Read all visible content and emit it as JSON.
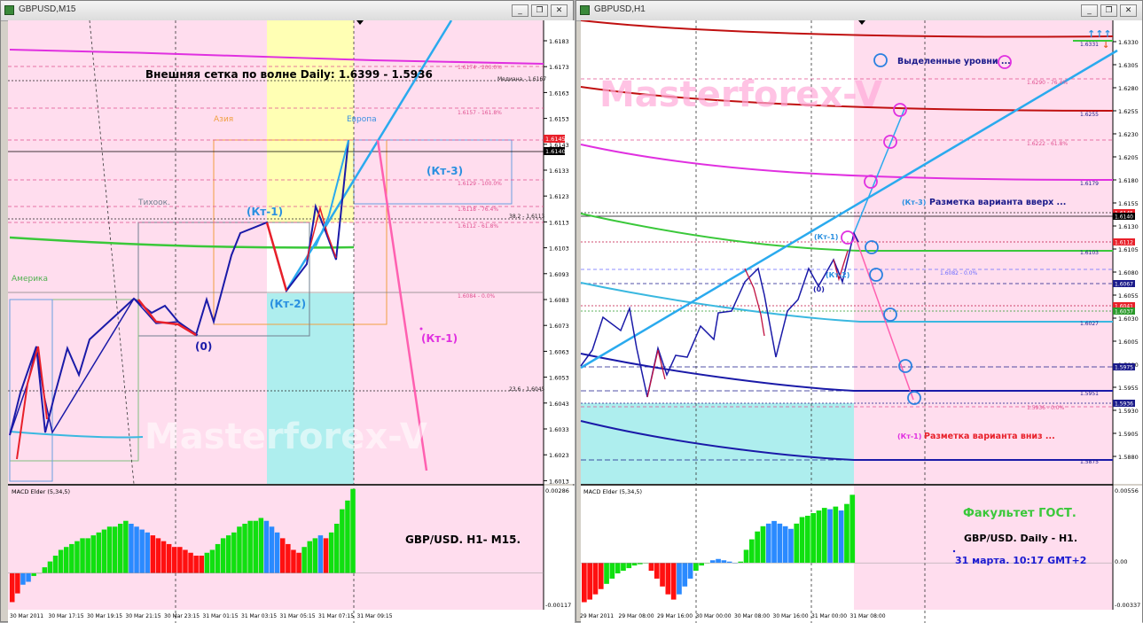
{
  "left_window": {
    "title": "GBPUSD,M15",
    "buttons": {
      "minimize": "_",
      "restore": "❐",
      "close": "✕"
    },
    "chart": {
      "y_ticks": [
        "1.6183",
        "1.6173",
        "1.6163",
        "1.6153",
        "1.6143",
        "1.6133",
        "1.6123",
        "1.6113",
        "1.6103",
        "1.6093",
        "1.6083",
        "1.6073",
        "1.6063",
        "1.6053",
        "1.6043",
        "1.6033",
        "1.6023",
        "1.6013"
      ],
      "price_tags": [
        {
          "text": "1.6145",
          "bg": "#e8202a",
          "fg": "#ffffff"
        },
        {
          "text": "1.6140",
          "bg": "#000000",
          "fg": "#ffffff"
        }
      ],
      "headline": "Внешняя сетка по волне Daily: 1.6399 - 1.5936",
      "sessions": {
        "asia": "Азия",
        "europe": "Европа",
        "pacific": "Тихоок.",
        "america": "Америка"
      },
      "fib_labels": [
        "1.6174 - 200.0%",
        "1.6157 - 161.8%",
        "1.6129 - 100.0%",
        "1.6118 - 76.4%",
        "1.6112 - 61.8%",
        "1.6084 - 0.0%"
      ],
      "level_labels": {
        "median": "Медиана - 1.6167",
        "l382": "38.2 - 1.6113",
        "l236": "23.6 - 1.6045"
      },
      "wave_labels": {
        "kt1": "(Кт-1)",
        "kt2": "(Кт-2)",
        "kt3": "(Кт-3)",
        "zero": "(0)",
        "kt1_down": "(Кт-1)"
      },
      "watermark": "Masterforex-V",
      "x_ticks": [
        "30 Mar 2011",
        "30 Mar 17:15",
        "30 Mar 19:15",
        "30 Mar 21:15",
        "30 Mar 23:15",
        "31 Mar 01:15",
        "31 Mar 03:15",
        "31 Mar 05:15",
        "31 Mar 07:15",
        "31 Mar 09:15"
      ]
    },
    "macd": {
      "label": "MACD Elder (5,34,5)",
      "y_ticks": [
        "0.00286",
        "-0.00117"
      ],
      "caption": "GBP/USD.  H1- M15.",
      "values": [
        -0.001,
        -0.0007,
        -0.0004,
        -0.0003,
        -0.0001,
        0.0,
        0.0002,
        0.0004,
        0.0006,
        0.0008,
        0.0009,
        0.001,
        0.0011,
        0.0012,
        0.0012,
        0.0013,
        0.0014,
        0.0015,
        0.0016,
        0.0016,
        0.0017,
        0.0018,
        0.0017,
        0.0016,
        0.0015,
        0.0014,
        0.0013,
        0.0012,
        0.0011,
        0.001,
        0.0009,
        0.0009,
        0.0008,
        0.0007,
        0.0006,
        0.0006,
        0.0007,
        0.0008,
        0.001,
        0.0012,
        0.0013,
        0.0014,
        0.0016,
        0.0017,
        0.0018,
        0.0018,
        0.0019,
        0.0018,
        0.0016,
        0.0014,
        0.0012,
        0.001,
        0.0008,
        0.0007,
        0.0009,
        0.0011,
        0.0012,
        0.0013,
        0.0012,
        0.0014,
        0.0017,
        0.0022,
        0.0025,
        0.0029
      ],
      "colors": [
        "r",
        "r",
        "b",
        "b",
        "g",
        "g",
        "g",
        "g",
        "g",
        "g",
        "g",
        "g",
        "g",
        "g",
        "g",
        "g",
        "g",
        "g",
        "g",
        "g",
        "g",
        "g",
        "b",
        "b",
        "b",
        "b",
        "r",
        "r",
        "r",
        "r",
        "r",
        "r",
        "r",
        "r",
        "r",
        "r",
        "g",
        "g",
        "g",
        "g",
        "g",
        "g",
        "g",
        "g",
        "g",
        "g",
        "g",
        "b",
        "b",
        "b",
        "r",
        "r",
        "r",
        "r",
        "g",
        "g",
        "g",
        "b",
        "r",
        "g",
        "g",
        "g",
        "g",
        "g"
      ]
    }
  },
  "right_window": {
    "title": "GBPUSD,H1",
    "buttons": {
      "minimize": "_",
      "restore": "❐",
      "close": "✕"
    },
    "chart": {
      "y_ticks": [
        "1.6330",
        "1.6305",
        "1.6280",
        "1.6255",
        "1.6230",
        "1.6205",
        "1.6180",
        "1.6155",
        "1.6130",
        "1.6105",
        "1.6080",
        "1.6055",
        "1.6030",
        "1.6005",
        "1.5980",
        "1.5955",
        "1.5930",
        "1.5905",
        "1.5880"
      ],
      "price_tags": [
        {
          "text": "1.6145",
          "bg": "#e8202a",
          "fg": "#ffffff"
        },
        {
          "text": "1.6140",
          "bg": "#000000",
          "fg": "#ffffff"
        },
        {
          "text": "1.6112",
          "bg": "#e8202a",
          "fg": "#ffffff"
        },
        {
          "text": "1.6067",
          "bg": "#1a1a8a",
          "fg": "#ffffff"
        },
        {
          "text": "1.6041",
          "bg": "#e8202a",
          "fg": "#ffffff"
        },
        {
          "text": "1.6037",
          "bg": "#2a9a2a",
          "fg": "#ffffff"
        },
        {
          "text": "1.5975",
          "bg": "#1a1a8a",
          "fg": "#ffffff"
        },
        {
          "text": "1.5936",
          "bg": "#1a1a8a",
          "fg": "#ffffff"
        }
      ],
      "level_labels": [
        "1.6331",
        "1.6290 - 76.4%",
        "1.6255",
        "1.6222 - 61.8%",
        "1.6179",
        "1.6103",
        "1.6082 - 0.0%",
        "1.6027",
        "1.5951",
        "1.5936 - 0.0%",
        "1.5875"
      ],
      "annotations": {
        "selected_levels": "Выделенные уровни ...",
        "kt3": "(Кт-3)",
        "up_variant": "Разметка варианта вверх ...",
        "kt1_top": "(Кт-1)",
        "kt2": "(Кт-2)",
        "zero": "(0)",
        "kt1_down": "(Кт-1)",
        "down_variant": "Разметка варианта вниз ..."
      },
      "arrows_up": "↑↑↑",
      "arrow_down": "↓",
      "watermark": "Masterforex-V",
      "x_ticks": [
        "29 Mar 2011",
        "29 Mar 08:00",
        "29 Mar 16:00",
        "30 Mar 00:00",
        "30 Mar 08:00",
        "30 Mar 16:00",
        "31 Mar 00:00",
        "31 Mar 08:00"
      ]
    },
    "macd": {
      "label": "MACD Elder (5,34,5)",
      "y_ticks": [
        "0.00556",
        "0.00",
        "-0.00337"
      ],
      "faculty": "Факультет ГОСТ.",
      "pair": "GBP/USD. Daily - H1.",
      "date": "31 марта. 10:17 GMT+2",
      "values": [
        -0.003,
        -0.0028,
        -0.0024,
        -0.002,
        -0.0016,
        -0.0012,
        -0.0008,
        -0.0006,
        -0.0004,
        -0.0002,
        -0.0001,
        0.0,
        -0.0006,
        -0.0012,
        -0.0018,
        -0.0024,
        -0.0028,
        -0.0024,
        -0.0018,
        -0.0012,
        -0.0006,
        -0.0002,
        0.0,
        0.0002,
        0.0003,
        0.0002,
        0.0001,
        0.0,
        0.0001,
        0.001,
        0.0018,
        0.0024,
        0.0028,
        0.003,
        0.0032,
        0.003,
        0.0028,
        0.0026,
        0.003,
        0.0035,
        0.0036,
        0.0038,
        0.004,
        0.0042,
        0.0041,
        0.0043,
        0.004,
        0.0045,
        0.0052
      ],
      "colors": [
        "r",
        "r",
        "r",
        "r",
        "g",
        "g",
        "g",
        "g",
        "g",
        "g",
        "g",
        "g",
        "r",
        "r",
        "r",
        "r",
        "r",
        "b",
        "b",
        "b",
        "g",
        "g",
        "g",
        "b",
        "b",
        "b",
        "b",
        "b",
        "g",
        "g",
        "g",
        "g",
        "g",
        "b",
        "b",
        "b",
        "b",
        "b",
        "g",
        "g",
        "g",
        "g",
        "g",
        "g",
        "b",
        "g",
        "b",
        "g",
        "g"
      ]
    }
  },
  "colors": {
    "bg_pink": "#ffddee",
    "panel_white": "#ffffff",
    "asia_yellow": "#ffffb4",
    "cyan_band": "#aeeeee",
    "wave_red": "#e8202a",
    "wave_blue": "#1a1aa8",
    "trend_cyan": "#2aaaee",
    "ma_green": "#3ac83a",
    "magenta": "#e030e0",
    "pink_line": "#ff60b0"
  }
}
